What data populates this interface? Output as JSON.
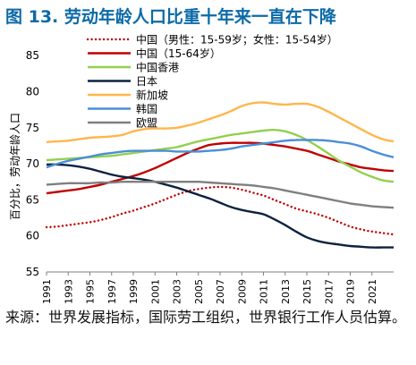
{
  "figure": {
    "title": "图 13. 劳动年龄人口比重十年来一直在下降",
    "source": "来源：世界发展指标，国际劳工组织，世界银行工作人员估算。"
  },
  "chart_data": {
    "type": "line",
    "title": "",
    "xlabel": "",
    "ylabel": "百分比，劳动年龄人口",
    "ylim": [
      55,
      87
    ],
    "yticks": [
      55,
      60,
      65,
      70,
      75,
      80,
      85
    ],
    "xlim": [
      1991,
      2023
    ],
    "xticks": [
      "1991",
      "1993",
      "1995",
      "1997",
      "1999",
      "2001",
      "2003",
      "2005",
      "2007",
      "2009",
      "2011",
      "2013",
      "2015",
      "2017",
      "2019",
      "2021"
    ],
    "grid": false,
    "legend_position": "top-left",
    "x": [
      1991,
      1992,
      1993,
      1994,
      1995,
      1996,
      1997,
      1998,
      1999,
      2000,
      2001,
      2002,
      2003,
      2004,
      2005,
      2006,
      2007,
      2008,
      2009,
      2010,
      2011,
      2012,
      2013,
      2014,
      2015,
      2016,
      2017,
      2018,
      2019,
      2020,
      2021,
      2022,
      2023
    ],
    "series": [
      {
        "name": "中国（男性：15-59岁；女性：15-54岁）",
        "color": "#c00000",
        "dash": "dotted",
        "values": [
          61.2,
          61.3,
          61.5,
          61.7,
          61.9,
          62.2,
          62.6,
          63.1,
          63.5,
          64.0,
          64.5,
          65.1,
          65.7,
          66.2,
          66.5,
          66.7,
          66.8,
          66.7,
          66.4,
          66.0,
          65.6,
          65.0,
          64.4,
          63.8,
          63.4,
          63.0,
          62.5,
          61.9,
          61.3,
          60.9,
          60.6,
          60.4,
          60.2
        ]
      },
      {
        "name": "中国（15-64岁）",
        "color": "#c00000",
        "dash": "solid",
        "values": [
          65.9,
          66.1,
          66.3,
          66.5,
          66.8,
          67.1,
          67.5,
          67.9,
          68.3,
          68.8,
          69.4,
          70.1,
          70.8,
          71.5,
          72.1,
          72.6,
          72.8,
          72.9,
          72.9,
          72.9,
          72.8,
          72.6,
          72.4,
          72.1,
          71.8,
          71.3,
          70.8,
          70.3,
          69.9,
          69.5,
          69.3,
          69.1,
          69.0
        ]
      },
      {
        "name": "中国香港",
        "color": "#92d050",
        "dash": "solid",
        "values": [
          70.5,
          70.6,
          70.7,
          70.8,
          70.9,
          71.0,
          71.1,
          71.3,
          71.5,
          71.7,
          71.9,
          72.1,
          72.3,
          72.7,
          73.1,
          73.4,
          73.7,
          74.0,
          74.2,
          74.4,
          74.6,
          74.7,
          74.5,
          74.0,
          73.3,
          72.4,
          71.4,
          70.4,
          69.6,
          68.8,
          68.2,
          67.7,
          67.5
        ]
      },
      {
        "name": "日本",
        "color": "#0d2240",
        "dash": "solid",
        "values": [
          69.9,
          69.9,
          69.8,
          69.6,
          69.3,
          68.9,
          68.5,
          68.2,
          68.0,
          67.8,
          67.5,
          67.1,
          66.7,
          66.2,
          65.7,
          65.2,
          64.6,
          64.0,
          63.6,
          63.3,
          63.0,
          62.3,
          61.5,
          60.6,
          59.8,
          59.3,
          59.0,
          58.8,
          58.6,
          58.5,
          58.4,
          58.4,
          58.4
        ]
      },
      {
        "name": "新加坡",
        "color": "#ffb64c",
        "dash": "solid",
        "values": [
          73.0,
          73.1,
          73.2,
          73.4,
          73.6,
          73.7,
          73.8,
          74.0,
          74.5,
          74.8,
          74.9,
          74.9,
          75.0,
          75.3,
          75.7,
          76.2,
          76.7,
          77.3,
          78.0,
          78.4,
          78.5,
          78.3,
          78.2,
          78.3,
          78.3,
          77.9,
          77.2,
          76.4,
          75.6,
          74.8,
          74.0,
          73.4,
          73.1
        ]
      },
      {
        "name": "韩国",
        "color": "#4a8ed8",
        "dash": "solid",
        "values": [
          69.5,
          70.0,
          70.4,
          70.7,
          71.0,
          71.3,
          71.5,
          71.7,
          71.8,
          71.8,
          71.8,
          71.8,
          71.7,
          71.7,
          71.7,
          71.8,
          71.9,
          72.1,
          72.4,
          72.6,
          72.8,
          73.0,
          73.2,
          73.3,
          73.3,
          73.3,
          73.2,
          73.0,
          72.8,
          72.4,
          71.8,
          71.3,
          70.9
        ]
      },
      {
        "name": "欧盟",
        "color": "#7f7f7f",
        "dash": "solid",
        "values": [
          67.1,
          67.2,
          67.3,
          67.3,
          67.3,
          67.4,
          67.4,
          67.5,
          67.5,
          67.5,
          67.5,
          67.5,
          67.5,
          67.5,
          67.5,
          67.4,
          67.3,
          67.2,
          67.1,
          67.0,
          66.8,
          66.6,
          66.3,
          66.0,
          65.7,
          65.4,
          65.1,
          64.8,
          64.5,
          64.3,
          64.1,
          64.0,
          63.9
        ]
      }
    ]
  }
}
